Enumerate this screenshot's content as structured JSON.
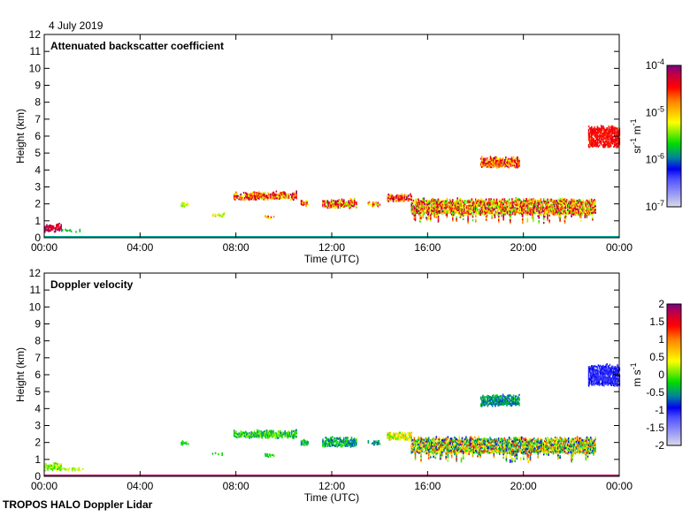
{
  "date_label": "4 July 2019",
  "footer_label": "TROPOS HALO Doppler Lidar",
  "colors": {
    "surface": "#00b0a0",
    "frame": "#000000"
  },
  "chart_data": [
    {
      "type": "heatmap",
      "title": "Attenuated backscatter coefficient",
      "xlabel": "Time (UTC)",
      "ylabel": "Height (km)",
      "xlim": [
        0,
        24
      ],
      "ylim": [
        0,
        12
      ],
      "xticks": [
        "00:00",
        "04:00",
        "08:00",
        "12:00",
        "16:00",
        "20:00",
        "00:00"
      ],
      "yticks": [
        "0",
        "1",
        "2",
        "3",
        "4",
        "5",
        "6",
        "7",
        "8",
        "9",
        "10",
        "11",
        "12"
      ],
      "colorbar": {
        "label": "sr-1 m-1",
        "unit_base": "sr",
        "unit_base2": "m",
        "unit_exp": "-1",
        "ticks": [
          {
            "base": "10",
            "exp": "-4"
          },
          {
            "base": "10",
            "exp": "-5"
          },
          {
            "base": "10",
            "exp": "-6"
          },
          {
            "base": "10",
            "exp": "-7"
          }
        ],
        "scale": "log",
        "range": [
          1e-07,
          0.0001
        ]
      },
      "features": [
        {
          "t": [
            0,
            0.7
          ],
          "h": [
            0.3,
            0.8
          ],
          "v": [
            0.85,
            1.0
          ]
        },
        {
          "t": [
            0.7,
            1.6
          ],
          "h": [
            0.3,
            0.5
          ],
          "v": [
            0.4,
            0.45
          ]
        },
        {
          "t": [
            5.7,
            6.0
          ],
          "h": [
            1.8,
            2.1
          ],
          "v": [
            0.5,
            0.6
          ]
        },
        {
          "t": [
            7.0,
            7.5
          ],
          "h": [
            1.2,
            1.4
          ],
          "v": [
            0.5,
            0.65
          ]
        },
        {
          "t": [
            7.9,
            10.5
          ],
          "h": [
            2.2,
            2.7
          ],
          "v": [
            0.55,
            1.0
          ]
        },
        {
          "t": [
            9.2,
            9.6
          ],
          "h": [
            1.1,
            1.3
          ],
          "v": [
            0.55,
            0.95
          ]
        },
        {
          "t": [
            10.7,
            11.0
          ],
          "h": [
            1.8,
            2.2
          ],
          "v": [
            0.5,
            0.95
          ]
        },
        {
          "t": [
            11.6,
            13.0
          ],
          "h": [
            1.7,
            2.3
          ],
          "v": [
            0.5,
            1.0
          ]
        },
        {
          "t": [
            13.5,
            14.0
          ],
          "h": [
            1.8,
            2.1
          ],
          "v": [
            0.5,
            0.9
          ]
        },
        {
          "t": [
            14.3,
            15.3
          ],
          "h": [
            2.1,
            2.6
          ],
          "v": [
            0.6,
            1.0
          ]
        },
        {
          "t": [
            15.3,
            23.0
          ],
          "h": [
            1.3,
            2.3
          ],
          "v": [
            0.45,
            1.0
          ]
        },
        {
          "t": [
            18.2,
            19.8
          ],
          "h": [
            4.1,
            4.8
          ],
          "v": [
            0.6,
            1.0
          ]
        },
        {
          "t": [
            22.7,
            24.0
          ],
          "h": [
            5.3,
            6.6
          ],
          "v": [
            0.8,
            0.9
          ]
        }
      ]
    },
    {
      "type": "heatmap",
      "title": "Doppler velocity",
      "xlabel": "Time (UTC)",
      "ylabel": "Height (km)",
      "xlim": [
        0,
        24
      ],
      "ylim": [
        0,
        12
      ],
      "xticks": [
        "00:00",
        "04:00",
        "08:00",
        "12:00",
        "16:00",
        "20:00",
        "00:00"
      ],
      "yticks": [
        "0",
        "1",
        "2",
        "3",
        "4",
        "5",
        "6",
        "7",
        "8",
        "9",
        "10",
        "11",
        "12"
      ],
      "colorbar": {
        "label": "m s-1",
        "unit_base": "m",
        "unit_base2": "s",
        "unit_exp": "-1",
        "ticks": [
          {
            "base": "2"
          },
          {
            "base": "1.5"
          },
          {
            "base": "1"
          },
          {
            "base": "0.5"
          },
          {
            "base": "0"
          },
          {
            "base": "-0.5"
          },
          {
            "base": "-1"
          },
          {
            "base": "-1.5"
          },
          {
            "base": "-2"
          }
        ],
        "scale": "linear",
        "range": [
          -2,
          2
        ]
      },
      "features": [
        {
          "t": [
            0,
            0.7
          ],
          "h": [
            0.3,
            0.8
          ],
          "v": [
            0.45,
            0.6
          ]
        },
        {
          "t": [
            0.7,
            1.6
          ],
          "h": [
            0.3,
            0.5
          ],
          "v": [
            0.5,
            0.6
          ]
        },
        {
          "t": [
            5.7,
            6.0
          ],
          "h": [
            1.8,
            2.1
          ],
          "v": [
            0.4,
            0.5
          ]
        },
        {
          "t": [
            7.0,
            7.5
          ],
          "h": [
            1.2,
            1.4
          ],
          "v": [
            0.4,
            0.5
          ]
        },
        {
          "t": [
            7.9,
            10.5
          ],
          "h": [
            2.2,
            2.7
          ],
          "v": [
            0.35,
            0.55
          ]
        },
        {
          "t": [
            9.2,
            9.6
          ],
          "h": [
            1.1,
            1.3
          ],
          "v": [
            0.4,
            0.5
          ]
        },
        {
          "t": [
            10.7,
            11.0
          ],
          "h": [
            1.8,
            2.2
          ],
          "v": [
            0.35,
            0.5
          ]
        },
        {
          "t": [
            11.6,
            13.0
          ],
          "h": [
            1.7,
            2.3
          ],
          "v": [
            0.3,
            0.5
          ]
        },
        {
          "t": [
            13.5,
            14.0
          ],
          "h": [
            1.8,
            2.1
          ],
          "v": [
            0.3,
            0.45
          ]
        },
        {
          "t": [
            14.3,
            15.3
          ],
          "h": [
            2.1,
            2.6
          ],
          "v": [
            0.45,
            0.7
          ]
        },
        {
          "t": [
            15.3,
            23.0
          ],
          "h": [
            1.3,
            2.3
          ],
          "v": [
            0.25,
            0.85
          ]
        },
        {
          "t": [
            18.2,
            19.8
          ],
          "h": [
            4.1,
            4.8
          ],
          "v": [
            0.3,
            0.45
          ]
        },
        {
          "t": [
            22.7,
            24.0
          ],
          "h": [
            5.3,
            6.6
          ],
          "v": [
            0.2,
            0.28
          ]
        }
      ]
    }
  ]
}
